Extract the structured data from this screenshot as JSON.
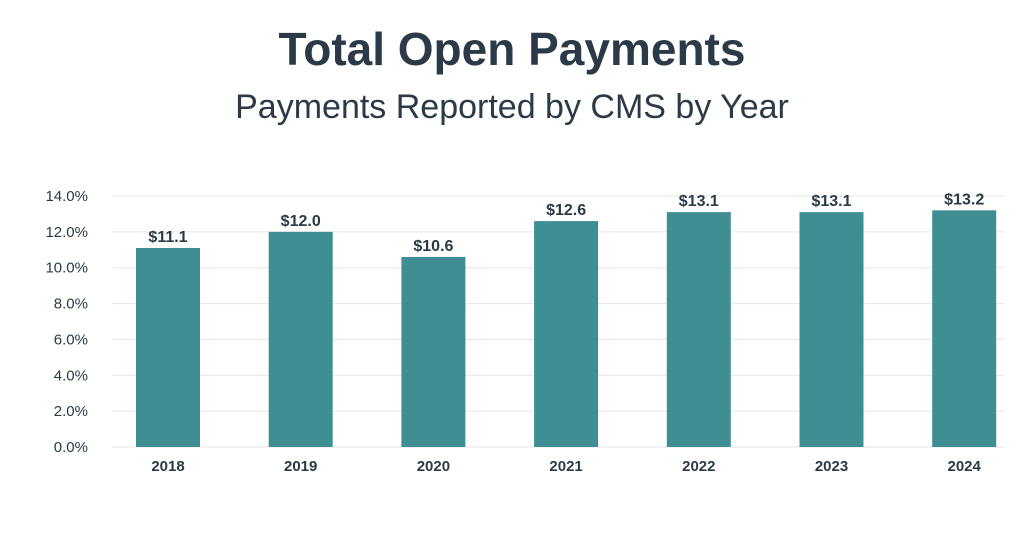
{
  "chart_data": {
    "type": "bar",
    "title": "Total Open Payments",
    "subtitle": "Payments Reported by CMS by Year",
    "categories": [
      "2018",
      "2019",
      "2020",
      "2021",
      "2022",
      "2023",
      "2024"
    ],
    "values": [
      11.1,
      12.0,
      10.6,
      12.6,
      13.1,
      13.1,
      13.2
    ],
    "data_labels": [
      "$11.1",
      "$12.0",
      "$10.6",
      "$12.6",
      "$13.1",
      "$13.1",
      "$13.2"
    ],
    "y_tick_labels": [
      "0.0%",
      "2.0%",
      "4.0%",
      "6.0%",
      "8.0%",
      "10.0%",
      "12.0%",
      "14.0%"
    ],
    "y_ticks": [
      0,
      2,
      4,
      6,
      8,
      10,
      12,
      14
    ],
    "ylim": [
      0,
      14
    ],
    "grid": true,
    "legend": "none",
    "bar_color": "#3f8e94",
    "grid_color": "#e6e6e6",
    "text_color": "#2b3a46"
  }
}
